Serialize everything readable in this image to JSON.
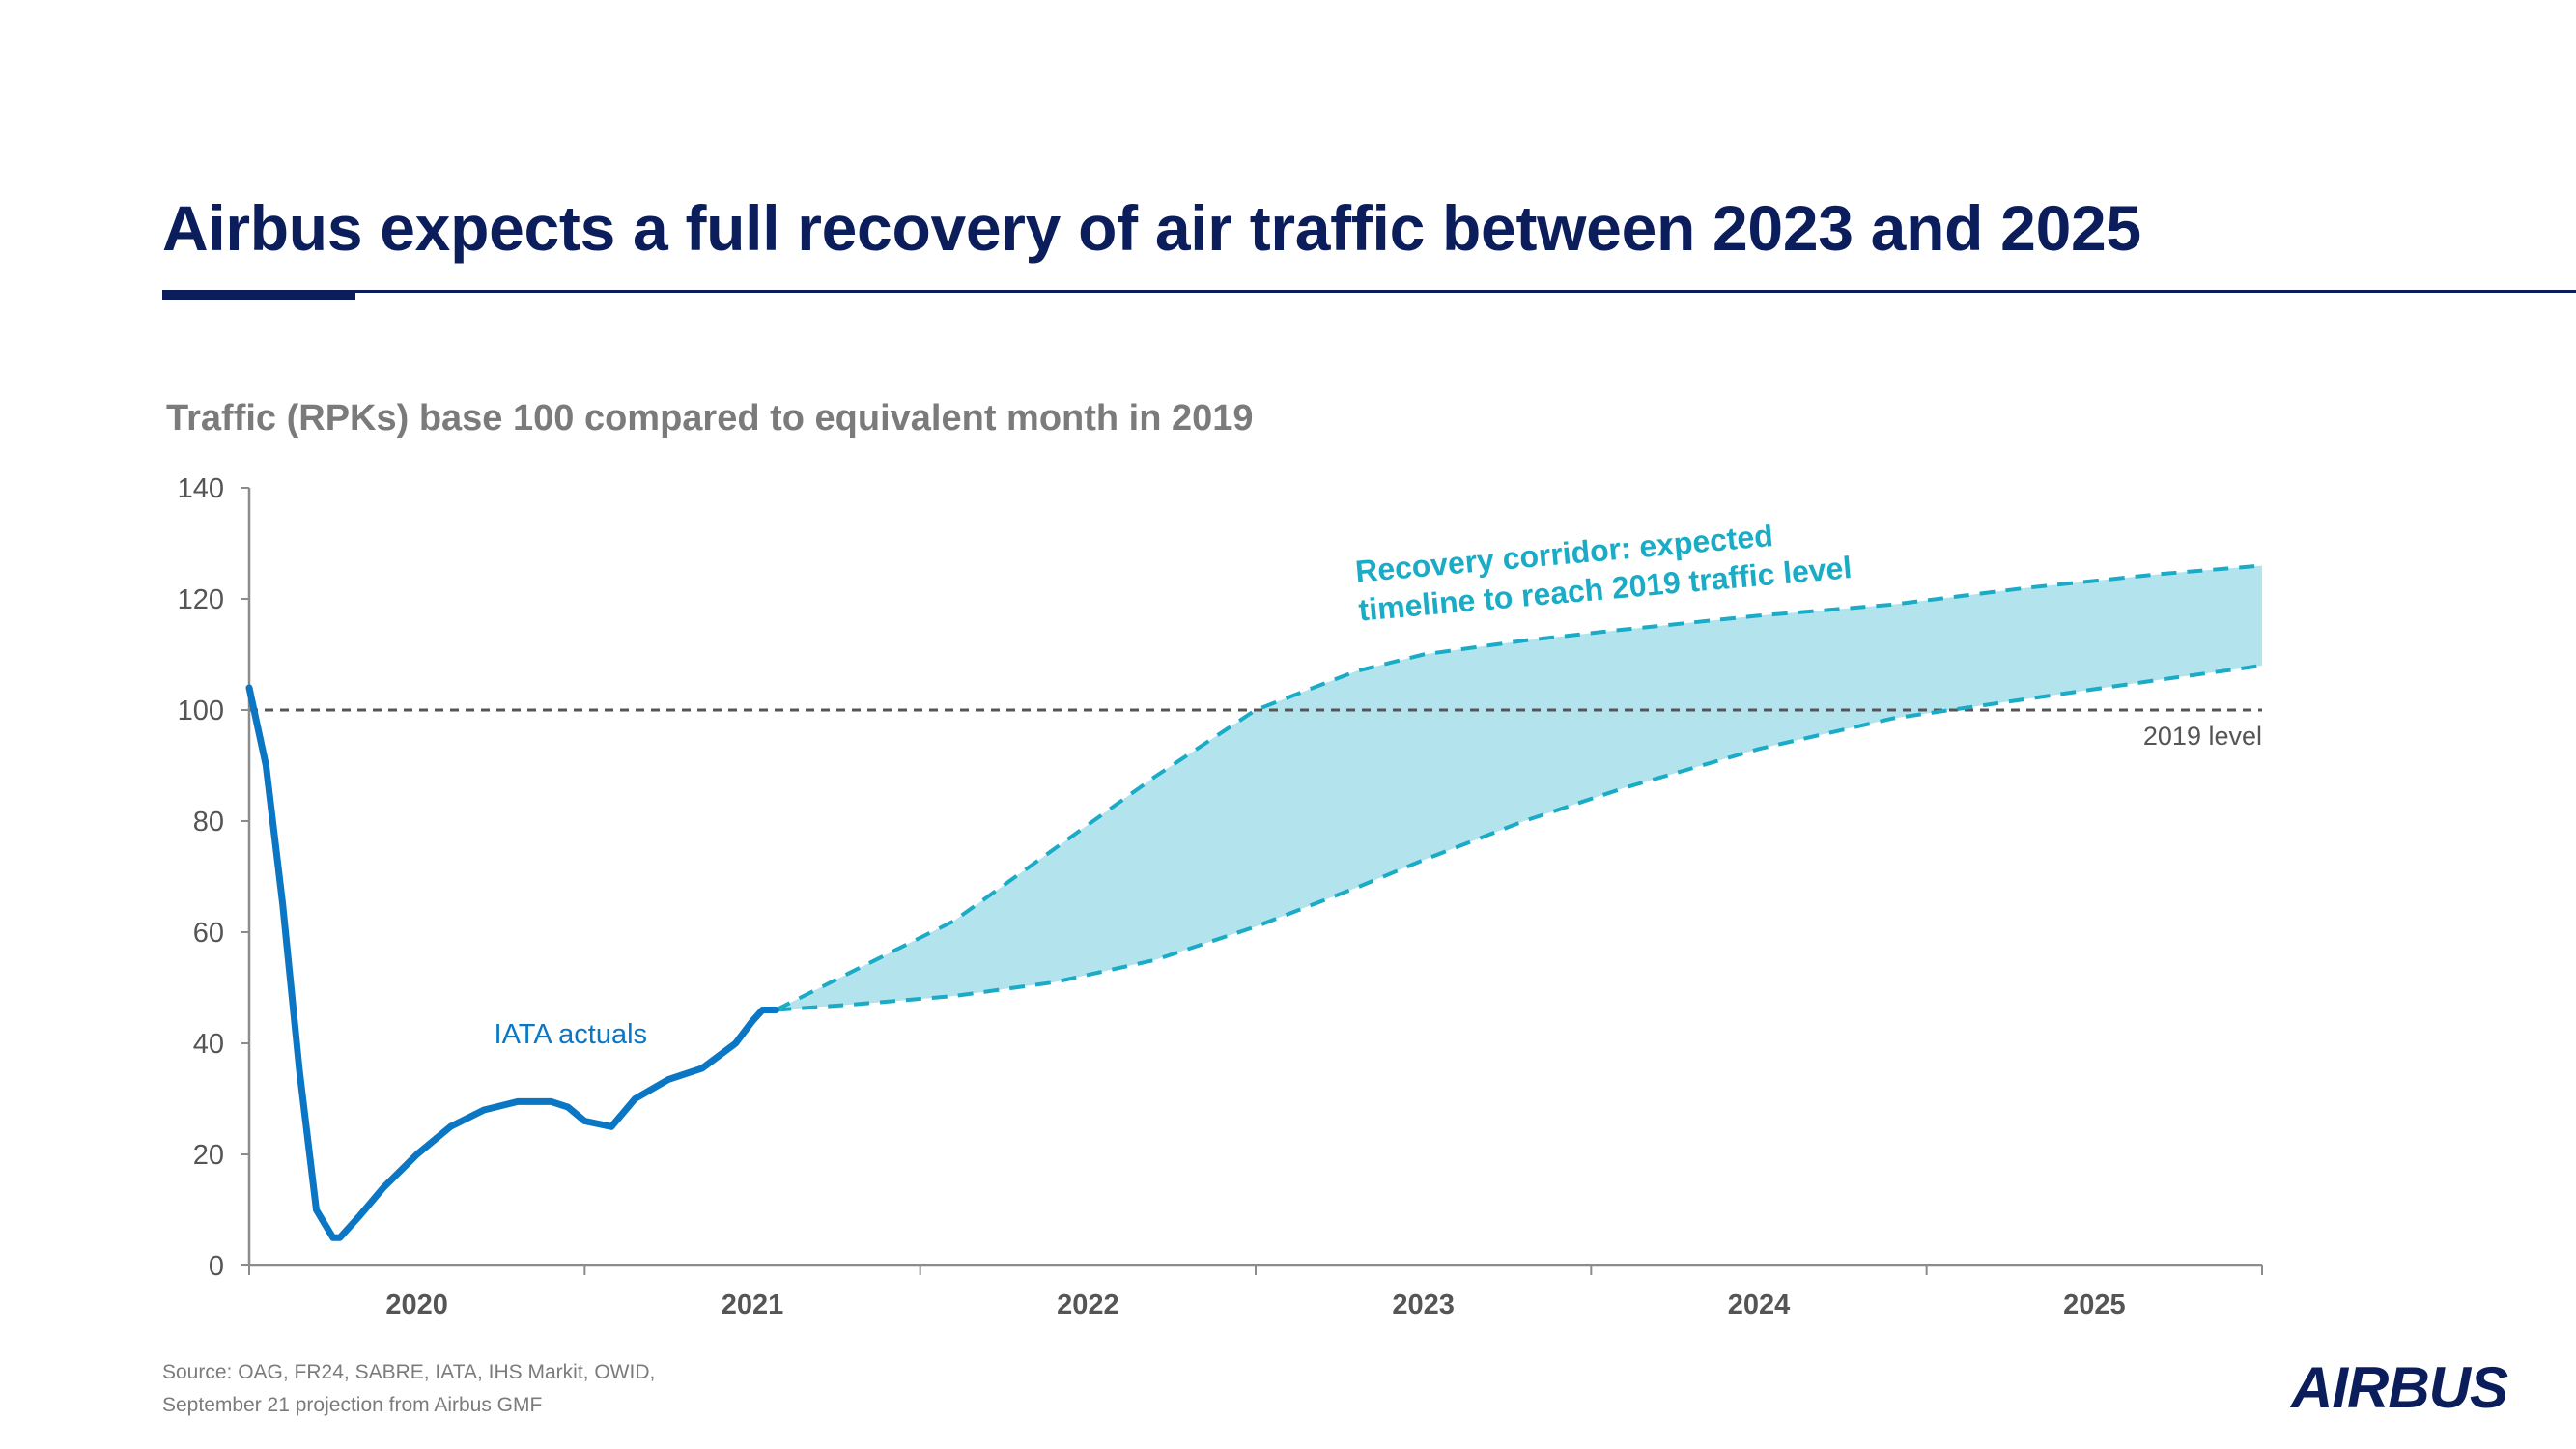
{
  "title": "Airbus expects a full recovery of air traffic between 2023 and 2025",
  "logo_text": "AIRBUS",
  "source_line1": "Source: OAG, FR24, SABRE, IATA, IHS Markit, OWID,",
  "source_line2": "September 21 projection from Airbus GMF",
  "colors": {
    "navy": "#0b1e5b",
    "actual_line": "#0a76c4",
    "corridor_line": "#1aabc6",
    "corridor_fill": "#b3e4ee",
    "axis": "#8c8c8c",
    "reference": "#555555"
  },
  "chart_data": {
    "type": "line",
    "title": "Traffic (RPKs) base 100 compared to equivalent month in 2019",
    "xlabel": "",
    "ylabel": "",
    "xlim": [
      2019.5,
      2025.5
    ],
    "ylim": [
      0,
      140
    ],
    "y_ticks": [
      0,
      20,
      40,
      60,
      80,
      100,
      120,
      140
    ],
    "x_ticks": [
      2020,
      2021,
      2022,
      2023,
      2024,
      2025
    ],
    "reference_line": {
      "y": 100,
      "label": "2019 level"
    },
    "series": [
      {
        "name": "IATA actuals",
        "style": "solid",
        "x": [
          2019.5,
          2019.55,
          2019.6,
          2019.65,
          2019.7,
          2019.75,
          2019.77,
          2019.83,
          2019.9,
          2020.0,
          2020.1,
          2020.2,
          2020.3,
          2020.4,
          2020.45,
          2020.5,
          2020.58,
          2020.65,
          2020.75,
          2020.85,
          2020.95,
          2021.0,
          2021.03,
          2021.07
        ],
        "y": [
          104,
          90,
          65,
          35,
          10,
          5,
          5,
          9,
          14,
          20,
          25,
          28,
          29.5,
          29.5,
          28.5,
          26,
          25,
          30,
          33.5,
          35.5,
          40,
          44,
          46,
          46
        ]
      },
      {
        "name": "Recovery corridor upper",
        "style": "dashed",
        "x": [
          2021.07,
          2021.3,
          2021.6,
          2021.9,
          2022.2,
          2022.5,
          2022.8,
          2023.0,
          2023.3,
          2023.6,
          2024.0,
          2024.4,
          2024.8,
          2025.2,
          2025.5
        ],
        "y": [
          46,
          53,
          62,
          75,
          88,
          100,
          107,
          110,
          112.5,
          114.5,
          117,
          119,
          122,
          124.5,
          126
        ]
      },
      {
        "name": "Recovery corridor lower",
        "style": "dashed",
        "x": [
          2021.07,
          2021.3,
          2021.6,
          2021.9,
          2022.2,
          2022.5,
          2022.8,
          2023.0,
          2023.3,
          2023.6,
          2024.0,
          2024.4,
          2024.8,
          2025.2,
          2025.5
        ],
        "y": [
          46,
          47,
          48.5,
          51,
          55,
          61,
          68,
          73,
          80,
          86,
          93,
          98.5,
          102,
          105.5,
          108
        ]
      }
    ],
    "annotations": [
      {
        "text": "IATA actuals",
        "x": 2020.23,
        "y": 40
      },
      {
        "text_line1": "Recovery corridor: expected",
        "text_line2": "timeline to reach 2019 traffic level",
        "x": 2022.8,
        "y": 123
      }
    ]
  }
}
